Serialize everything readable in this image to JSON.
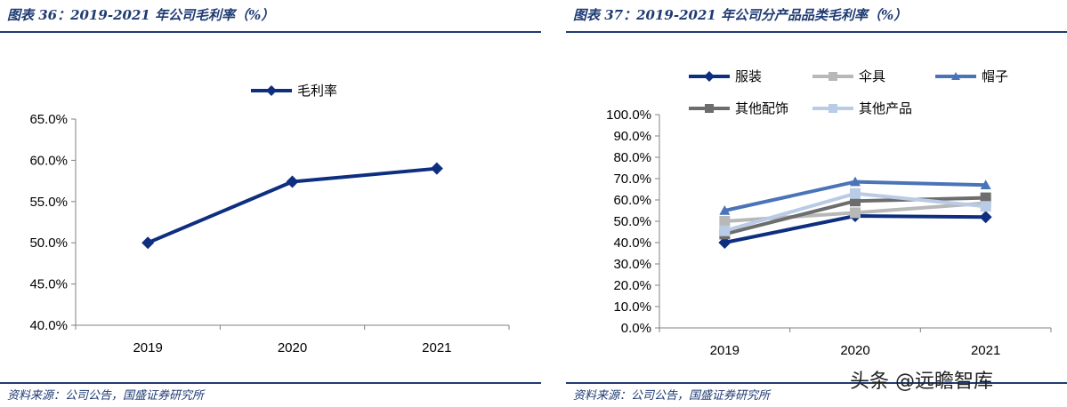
{
  "left": {
    "title": "图表 36：2019-2021 年公司毛利率（%）",
    "source": "资料来源：公司公告，国盛证券研究所"
  },
  "right": {
    "title": "图表 37：2019-2021 年公司分产品品类毛利率（%）",
    "source": "资料来源：公司公告，国盛证券研究所"
  },
  "watermark": "头条 @远瞻智库",
  "chart_data": [
    {
      "type": "line",
      "title": "",
      "categories": [
        "2019",
        "2020",
        "2021"
      ],
      "series": [
        {
          "name": "毛利率",
          "values": [
            50.0,
            57.4,
            59.0
          ],
          "color": "#0e2f80",
          "marker": "diamond"
        }
      ],
      "ylim": [
        40,
        65
      ],
      "yticks": [
        "40.0%",
        "45.0%",
        "50.0%",
        "55.0%",
        "60.0%",
        "65.0%"
      ],
      "ytick_values": [
        40,
        45,
        50,
        55,
        60,
        65
      ],
      "legend": "top-center",
      "grid": false
    },
    {
      "type": "line",
      "title": "",
      "categories": [
        "2019",
        "2020",
        "2021"
      ],
      "series": [
        {
          "name": "服装",
          "values": [
            40.0,
            52.5,
            52.0
          ],
          "color": "#0e2f80",
          "marker": "diamond"
        },
        {
          "name": "伞具",
          "values": [
            50.0,
            54.0,
            58.5
          ],
          "color": "#b8b8b8",
          "marker": "square"
        },
        {
          "name": "帽子",
          "values": [
            55.0,
            68.5,
            67.0
          ],
          "color": "#4a74b8",
          "marker": "triangle"
        },
        {
          "name": "其他配饰",
          "values": [
            44.0,
            59.5,
            61.0
          ],
          "color": "#6d6d6d",
          "marker": "square"
        },
        {
          "name": "其他产品",
          "values": [
            45.5,
            63.0,
            57.0
          ],
          "color": "#b9cbe5",
          "marker": "square"
        }
      ],
      "ylim": [
        0,
        100
      ],
      "yticks": [
        "0.0%",
        "10.0%",
        "20.0%",
        "30.0%",
        "40.0%",
        "50.0%",
        "60.0%",
        "70.0%",
        "80.0%",
        "90.0%",
        "100.0%"
      ],
      "ytick_values": [
        0,
        10,
        20,
        30,
        40,
        50,
        60,
        70,
        80,
        90,
        100
      ],
      "legend": "top",
      "grid": false
    }
  ]
}
